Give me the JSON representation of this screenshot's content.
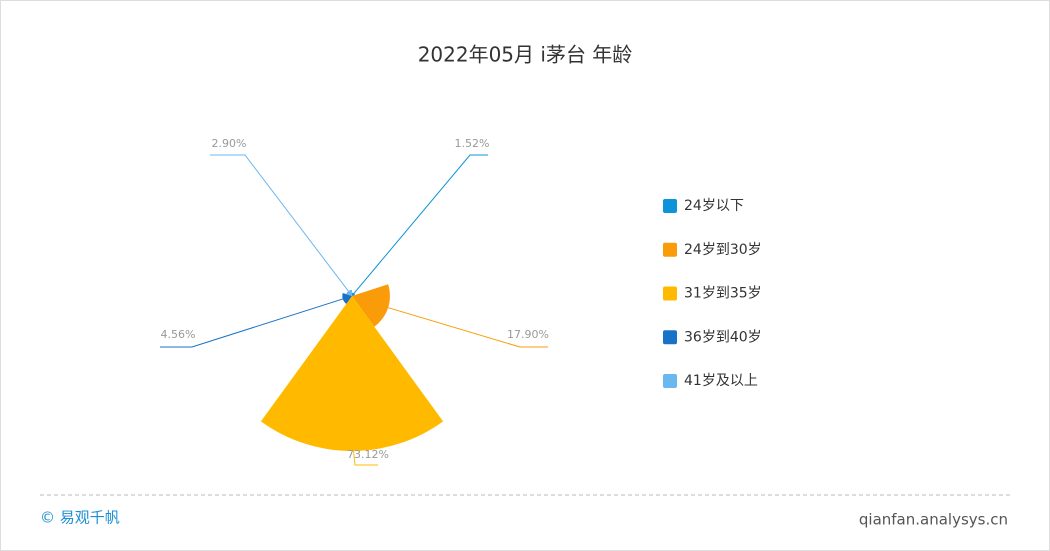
{
  "chart_data": {
    "type": "rose",
    "title": "2022年05月 i茅台 年龄",
    "categories": [
      "24岁以下",
      "24岁到30岁",
      "31岁到35岁",
      "36岁到40岁",
      "41岁及以上"
    ],
    "values": [
      1.52,
      17.9,
      73.12,
      4.56,
      2.9
    ],
    "value_labels": [
      "1.52%",
      "17.90%",
      "73.12%",
      "4.56%",
      "2.90%"
    ],
    "colors": [
      "#0e93d8",
      "#fa9b0a",
      "#ffba00",
      "#1772c8",
      "#6bb7f0"
    ]
  },
  "footer": {
    "brand": "© 易观千帆",
    "url": "qianfan.analysys.cn"
  }
}
